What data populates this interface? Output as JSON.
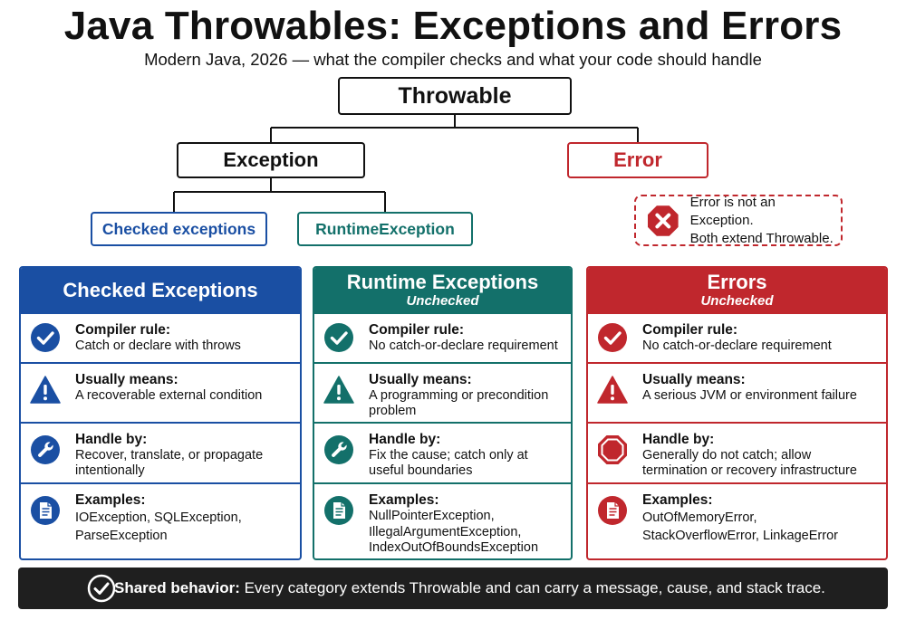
{
  "title": "Java Throwables: Exceptions and Errors",
  "subtitle": "Modern Java, 2026 — what the compiler checks and what your code should handle",
  "tree": {
    "root": "Throwable",
    "exception": "Exception",
    "error": "Error",
    "checked": "Checked exceptions",
    "runtime": "RuntimeException"
  },
  "error_note": {
    "line1": "Error is not an Exception.",
    "line2": "Both extend Throwable."
  },
  "colors": {
    "checked": "#1a4fa3",
    "runtime": "#13706a",
    "error": "#c0272d",
    "banner": "#1f1f1f"
  },
  "cards": {
    "checked": {
      "title": "Checked Exceptions",
      "subtitle": "",
      "rows": [
        {
          "icon": "check-circle-icon",
          "label": "Compiler rule:",
          "body": [
            "Catch or declare with throws"
          ]
        },
        {
          "icon": "warning-triangle-icon",
          "label": "Usually means:",
          "body": [
            "A recoverable external condition"
          ]
        },
        {
          "icon": "wrench-icon",
          "label": "Handle by:",
          "body": [
            "Recover, translate, or propagate",
            "intentionally"
          ]
        },
        {
          "icon": "document-icon",
          "label": "Examples:",
          "body": [
            "IOException, SQLException,",
            "ParseException"
          ]
        }
      ]
    },
    "runtime": {
      "title": "Runtime Exceptions",
      "subtitle": "Unchecked",
      "rows": [
        {
          "icon": "check-circle-icon",
          "label": "Compiler rule:",
          "body": [
            "No catch-or-declare requirement"
          ]
        },
        {
          "icon": "warning-triangle-icon",
          "label": "Usually means:",
          "body": [
            "A programming or precondition",
            "problem"
          ]
        },
        {
          "icon": "wrench-icon",
          "label": "Handle by:",
          "body": [
            "Fix the cause; catch only at",
            "useful boundaries"
          ]
        },
        {
          "icon": "document-icon",
          "label": "Examples:",
          "body": [
            "NullPointerException,",
            "IllegalArgumentException,",
            "IndexOutOfBoundsException"
          ]
        }
      ]
    },
    "errors": {
      "title": "Errors",
      "subtitle": "Unchecked",
      "rows": [
        {
          "icon": "check-circle-icon",
          "label": "Compiler rule:",
          "body": [
            "No catch-or-declare requirement"
          ]
        },
        {
          "icon": "warning-triangle-icon",
          "label": "Usually means:",
          "body": [
            "A serious JVM or environment failure"
          ]
        },
        {
          "icon": "stop-octagon-icon",
          "label": "Handle by:",
          "body": [
            "Generally do not catch; allow",
            "termination or recovery infrastructure"
          ]
        },
        {
          "icon": "document-icon",
          "label": "Examples:",
          "body": [
            "OutOfMemoryError,",
            "StackOverflowError, LinkageError"
          ]
        }
      ]
    }
  },
  "banner": {
    "label": "Shared behavior:",
    "text": " Every category extends Throwable and can carry a message, cause, and stack trace."
  }
}
